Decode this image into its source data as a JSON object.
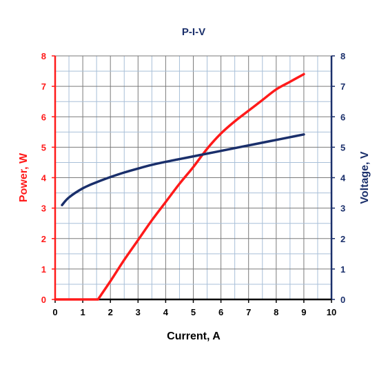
{
  "chart_data": {
    "type": "line",
    "title": "P-I-V",
    "xlabel": "Current, A",
    "ylabel_left": "Power, W",
    "ylabel_right": "Voltage, V",
    "xlim": [
      0,
      10
    ],
    "ylim_left": [
      0,
      8
    ],
    "ylim_right": [
      0,
      8
    ],
    "x_ticks": [
      "0",
      "1",
      "2",
      "3",
      "4",
      "5",
      "6",
      "7",
      "8",
      "9",
      "10"
    ],
    "y_left_ticks": [
      "0",
      "1",
      "2",
      "3",
      "4",
      "5",
      "6",
      "7",
      "8"
    ],
    "y_right_ticks": [
      "0",
      "1",
      "2",
      "3",
      "4",
      "5",
      "6",
      "7",
      "8"
    ],
    "grid": true,
    "series": [
      {
        "name": "Power",
        "axis": "left",
        "color": "#ff1a1a",
        "points": [
          [
            0,
            0
          ],
          [
            1.55,
            0
          ],
          [
            2,
            0.6
          ],
          [
            2.5,
            1.3
          ],
          [
            3,
            1.95
          ],
          [
            3.5,
            2.6
          ],
          [
            4,
            3.2
          ],
          [
            4.5,
            3.8
          ],
          [
            5,
            4.35
          ],
          [
            5.5,
            4.95
          ],
          [
            6,
            5.45
          ],
          [
            6.5,
            5.85
          ],
          [
            7,
            6.2
          ],
          [
            7.5,
            6.55
          ],
          [
            8,
            6.9
          ],
          [
            8.5,
            7.15
          ],
          [
            9,
            7.4
          ]
        ]
      },
      {
        "name": "Voltage",
        "axis": "right",
        "color": "#1a2f6b",
        "points": [
          [
            0.25,
            3.1
          ],
          [
            0.5,
            3.35
          ],
          [
            1,
            3.65
          ],
          [
            1.5,
            3.85
          ],
          [
            2,
            4.02
          ],
          [
            2.5,
            4.17
          ],
          [
            3,
            4.3
          ],
          [
            3.5,
            4.42
          ],
          [
            4,
            4.52
          ],
          [
            4.5,
            4.61
          ],
          [
            5,
            4.7
          ],
          [
            5.5,
            4.79
          ],
          [
            6,
            4.88
          ],
          [
            6.5,
            4.97
          ],
          [
            7,
            5.06
          ],
          [
            7.5,
            5.15
          ],
          [
            8,
            5.24
          ],
          [
            8.5,
            5.33
          ],
          [
            9,
            5.42
          ]
        ]
      }
    ],
    "colors": {
      "left_axis": "#ff1a1a",
      "right_axis": "#1a2f6b",
      "title": "#1a2f6b",
      "grid_major": "#7a7a7a",
      "grid_minor": "#a8bfd8",
      "x_axis": "#000000"
    }
  }
}
